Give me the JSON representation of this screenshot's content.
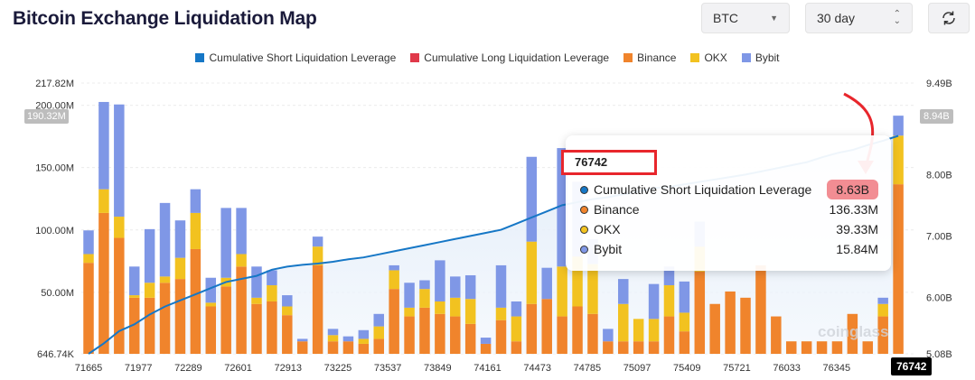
{
  "header": {
    "title": "Bitcoin Exchange Liquidation Map",
    "coin_value": "BTC",
    "range_value": "30 day"
  },
  "colors": {
    "short_line": "#1677c6",
    "long_line": "#e0394a",
    "binance": "#f0842c",
    "okx": "#f2c220",
    "bybit": "#7f97e6",
    "annotation": "#e8262c"
  },
  "chart_data": {
    "type": "bar",
    "title": "Bitcoin Exchange Liquidation Map",
    "legend": [
      "Cumulative Short Liquidation Leverage",
      "Cumulative Long Liquidation Leverage",
      "Binance",
      "OKX",
      "Bybit"
    ],
    "x_tick_labels": [
      "71665",
      "71977",
      "72289",
      "72601",
      "72913",
      "73225",
      "73537",
      "73849",
      "74161",
      "74473",
      "74785",
      "75097",
      "75409",
      "75721",
      "76033",
      "76345",
      "76742"
    ],
    "y_left_ticks": [
      "646.74K",
      "50.00M",
      "100.00M",
      "150.00M",
      "200.00M",
      "217.82M"
    ],
    "y_right_ticks": [
      "5.08B",
      "6.00B",
      "7.00B",
      "8.00B",
      "9.49B"
    ],
    "y_left_range_millions": [
      0.64674,
      217.82
    ],
    "y_right_range_billions": [
      5.08,
      9.49
    ],
    "left_marker": "190.32M",
    "right_marker": "8.94B",
    "bars_millions": {
      "binance": [
        73,
        113,
        93,
        45,
        45,
        57,
        60,
        84,
        38,
        54,
        70,
        40,
        42,
        31,
        10,
        71,
        10,
        10,
        8,
        12,
        52,
        30,
        37,
        32,
        30,
        24,
        8,
        27,
        10,
        40,
        44,
        30,
        38,
        32,
        10,
        10,
        10,
        10,
        30,
        18,
        66,
        40,
        50,
        45,
        71,
        30,
        10,
        10,
        10,
        10,
        32,
        10,
        30,
        136
      ],
      "okx": [
        7,
        19,
        17,
        2,
        12,
        5,
        17,
        29,
        3,
        7,
        10,
        5,
        13,
        7,
        0,
        15,
        5,
        0,
        4,
        10,
        15,
        7,
        15,
        10,
        15,
        20,
        0,
        10,
        20,
        50,
        0,
        40,
        40,
        40,
        0,
        30,
        18,
        18,
        25,
        15,
        20,
        0,
        0,
        0,
        0,
        0,
        0,
        0,
        0,
        0,
        0,
        0,
        10,
        39
      ],
      "bybit": [
        19,
        70,
        90,
        23,
        43,
        59,
        30,
        19,
        20,
        56,
        37,
        25,
        12,
        9,
        2,
        8,
        5,
        4,
        7,
        10,
        4,
        20,
        7,
        33,
        17,
        19,
        5,
        34,
        12,
        68,
        25,
        95,
        60,
        20,
        10,
        20,
        0,
        28,
        15,
        25,
        20,
        0,
        0,
        0,
        0,
        0,
        0,
        0,
        0,
        0,
        0,
        0,
        5,
        16
      ]
    },
    "cumulative_short_billions": [
      5.08,
      5.25,
      5.45,
      5.56,
      5.72,
      5.85,
      5.95,
      6.05,
      6.15,
      6.25,
      6.3,
      6.35,
      6.45,
      6.5,
      6.53,
      6.55,
      6.58,
      6.62,
      6.65,
      6.7,
      6.75,
      6.8,
      6.85,
      6.9,
      6.95,
      7.0,
      7.05,
      7.1,
      7.2,
      7.3,
      7.4,
      7.5,
      7.55,
      7.6,
      7.63,
      7.68,
      7.72,
      7.78,
      7.8,
      7.84,
      7.88,
      7.92,
      7.96,
      8.0,
      8.05,
      8.1,
      8.15,
      8.2,
      8.28,
      8.35,
      8.4,
      8.48,
      8.55,
      8.63
    ],
    "tooltip": {
      "price": "76742",
      "rows": [
        {
          "label": "Cumulative Short Liquidation Leverage",
          "value": "8.63B",
          "dot": "#1677c6"
        },
        {
          "label": "Binance",
          "value": "136.33M",
          "dot": "#f0842c"
        },
        {
          "label": "OKX",
          "value": "39.33M",
          "dot": "#f2c220"
        },
        {
          "label": "Bybit",
          "value": "15.84M",
          "dot": "#7f97e6"
        }
      ]
    },
    "hover_x": "76742"
  },
  "watermark": "coinglass"
}
